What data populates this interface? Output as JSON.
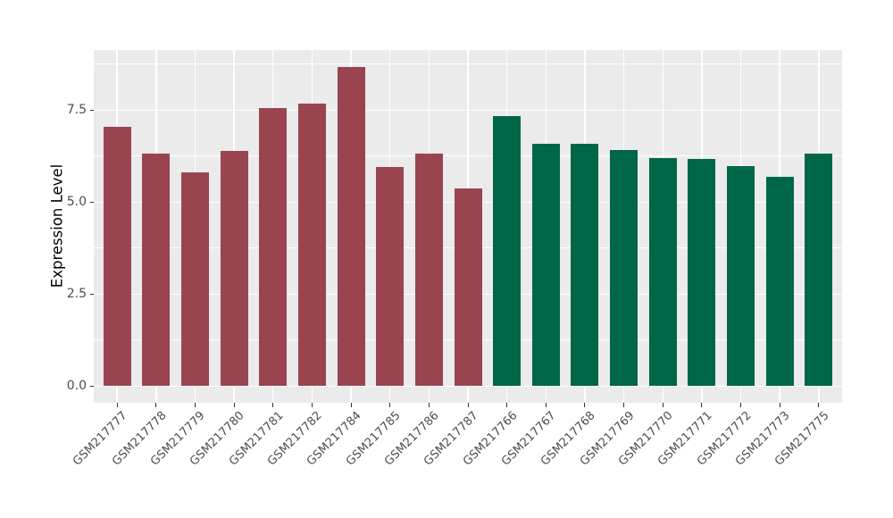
{
  "chart_data": {
    "type": "bar",
    "title": "",
    "xlabel": "",
    "ylabel": "Expression Level",
    "ylim": [
      0,
      9.13
    ],
    "yticks": [
      0,
      2.5,
      5,
      7.5
    ],
    "ytick_labels": [
      "0.0",
      "2.5",
      "5.0",
      "7.5"
    ],
    "minor_gridlines": [
      1.25,
      3.75,
      6.25,
      8.75
    ],
    "grid": "on",
    "legend": "none",
    "categories": [
      "GSM217777",
      "GSM217778",
      "GSM217779",
      "GSM217780",
      "GSM217781",
      "GSM217782",
      "GSM217784",
      "GSM217785",
      "GSM217786",
      "GSM217787",
      "GSM217766",
      "GSM217767",
      "GSM217768",
      "GSM217769",
      "GSM217770",
      "GSM217771",
      "GSM217772",
      "GSM217773",
      "GSM217775"
    ],
    "values": [
      7.05,
      6.32,
      5.8,
      6.39,
      7.56,
      7.68,
      8.68,
      5.96,
      6.33,
      5.37,
      7.34,
      6.58,
      6.59,
      6.41,
      6.2,
      6.17,
      5.98,
      5.69,
      6.32
    ],
    "bar_groups": [
      "group1",
      "group1",
      "group1",
      "group1",
      "group1",
      "group1",
      "group1",
      "group1",
      "group1",
      "group1",
      "group2",
      "group2",
      "group2",
      "group2",
      "group2",
      "group2",
      "group2",
      "group2",
      "group2"
    ],
    "group_colors": {
      "group1": "#9A4450",
      "group2": "#006648"
    },
    "style": {
      "panel_bg": "#EBEBEB",
      "grid_color": "#FFFFFF",
      "tick_color": "#333333",
      "tick_label_color": "#4D4D4D",
      "axis_title_color": "#000000",
      "background": "#FFFFFF"
    }
  }
}
